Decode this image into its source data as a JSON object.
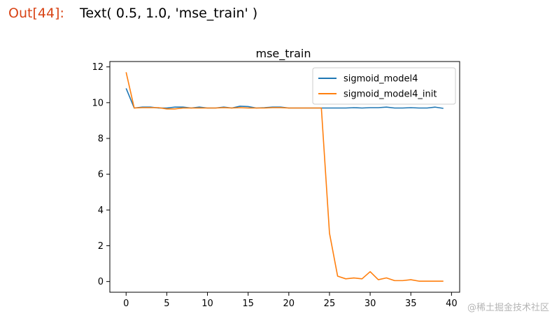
{
  "cell": {
    "prompt": "Out[44]:",
    "output_text": "Text( 0.5, 1.0, 'mse_train' )"
  },
  "watermark": "@稀土掘金技术社区",
  "chart_data": {
    "type": "line",
    "title": "mse_train",
    "xlabel": "",
    "ylabel": "",
    "xlim": [
      -2,
      41
    ],
    "ylim": [
      -0.6,
      12.3
    ],
    "xticks": [
      0,
      5,
      10,
      15,
      20,
      25,
      30,
      35,
      40
    ],
    "yticks": [
      0,
      2,
      4,
      6,
      8,
      10,
      12
    ],
    "legend_position": "top-right",
    "grid": false,
    "x": [
      0,
      1,
      2,
      3,
      4,
      5,
      6,
      7,
      8,
      9,
      10,
      11,
      12,
      13,
      14,
      15,
      16,
      17,
      18,
      19,
      20,
      21,
      22,
      23,
      24,
      25,
      26,
      27,
      28,
      29,
      30,
      31,
      32,
      33,
      34,
      35,
      36,
      37,
      38,
      39
    ],
    "series": [
      {
        "name": "sigmoid_model4",
        "color": "#1f77b4",
        "values": [
          10.8,
          9.7,
          9.75,
          9.75,
          9.7,
          9.7,
          9.75,
          9.75,
          9.7,
          9.75,
          9.7,
          9.7,
          9.75,
          9.7,
          9.8,
          9.78,
          9.7,
          9.72,
          9.75,
          9.75,
          9.7,
          9.7,
          9.7,
          9.7,
          9.7,
          9.7,
          9.7,
          9.7,
          9.72,
          9.7,
          9.72,
          9.72,
          9.75,
          9.7,
          9.7,
          9.72,
          9.7,
          9.7,
          9.75,
          9.68
        ]
      },
      {
        "name": "sigmoid_model4_init",
        "color": "#ff7f0e",
        "values": [
          11.7,
          9.7,
          9.72,
          9.72,
          9.72,
          9.65,
          9.65,
          9.7,
          9.7,
          9.7,
          9.7,
          9.7,
          9.72,
          9.7,
          9.72,
          9.7,
          9.7,
          9.7,
          9.72,
          9.72,
          9.7,
          9.7,
          9.7,
          9.7,
          9.7,
          2.7,
          0.3,
          0.15,
          0.2,
          0.15,
          0.55,
          0.1,
          0.2,
          0.05,
          0.05,
          0.1,
          0.02,
          0.02,
          0.02,
          0.02
        ]
      }
    ]
  }
}
